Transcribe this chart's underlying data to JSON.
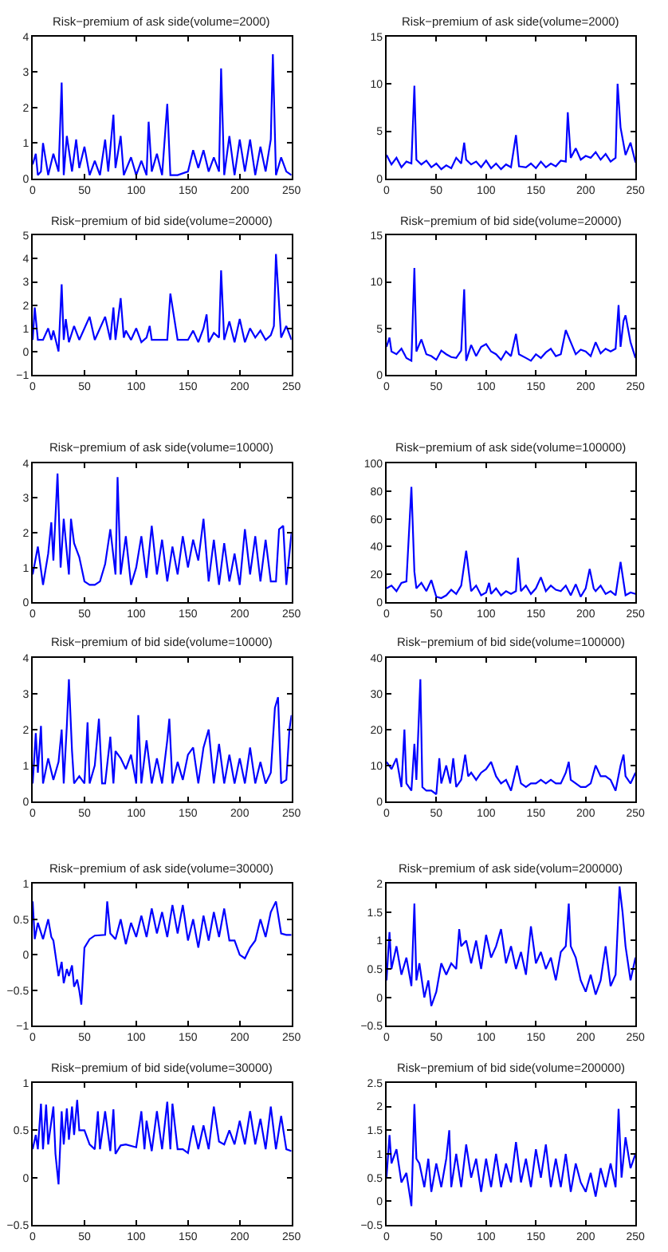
{
  "chart_data": [
    {
      "type": "line",
      "title": "Risk−premium of ask side(volume=2000)",
      "xlim": [
        0,
        250
      ],
      "xticks": [
        0,
        50,
        100,
        150,
        200,
        250
      ],
      "ylim": [
        0,
        4
      ],
      "yticks": [
        0,
        1,
        2,
        3,
        4
      ],
      "x": [
        0,
        3,
        5,
        8,
        10,
        15,
        20,
        25,
        28,
        30,
        33,
        38,
        42,
        45,
        50,
        55,
        60,
        65,
        70,
        73,
        78,
        80,
        85,
        88,
        95,
        100,
        105,
        110,
        112,
        115,
        120,
        125,
        130,
        133,
        140,
        150,
        155,
        160,
        165,
        170,
        175,
        180,
        182,
        185,
        190,
        195,
        200,
        205,
        210,
        215,
        220,
        225,
        230,
        232,
        235,
        240,
        245,
        250
      ],
      "series": [
        {
          "color": "#0000ff",
          "values": [
            0.4,
            0.7,
            0.1,
            0.2,
            1.0,
            0.1,
            0.7,
            0.2,
            2.7,
            0.1,
            1.2,
            0.2,
            1.1,
            0.3,
            0.9,
            0.1,
            0.5,
            0.1,
            1.1,
            0.2,
            1.8,
            0.3,
            1.2,
            0.1,
            0.6,
            0.1,
            0.5,
            0.1,
            1.6,
            0.2,
            0.7,
            0.1,
            2.1,
            0.1,
            0.1,
            0.2,
            0.8,
            0.3,
            0.8,
            0.2,
            0.6,
            0.2,
            3.1,
            0.1,
            1.2,
            0.1,
            1.1,
            0.2,
            1.1,
            0.1,
            0.9,
            0.2,
            1.1,
            3.5,
            0.1,
            0.6,
            0.2,
            0.1
          ]
        }
      ]
    },
    {
      "type": "line",
      "title": "Risk−premium of ask side(volume=2000)",
      "xlim": [
        0,
        250
      ],
      "xticks": [
        0,
        50,
        100,
        150,
        200,
        250
      ],
      "ylim": [
        0,
        15
      ],
      "yticks": [
        0,
        5,
        10,
        15
      ],
      "x": [
        0,
        5,
        10,
        15,
        20,
        25,
        28,
        30,
        35,
        40,
        45,
        50,
        55,
        60,
        65,
        70,
        75,
        78,
        80,
        85,
        90,
        95,
        100,
        105,
        110,
        115,
        120,
        125,
        130,
        133,
        140,
        145,
        150,
        155,
        160,
        165,
        170,
        175,
        180,
        182,
        185,
        190,
        195,
        200,
        205,
        210,
        215,
        220,
        225,
        230,
        232,
        235,
        240,
        245,
        250
      ],
      "series": [
        {
          "color": "#0000ff",
          "values": [
            2.5,
            1.5,
            2.2,
            1.2,
            1.8,
            1.6,
            9.8,
            2.0,
            1.5,
            1.9,
            1.2,
            1.6,
            1.0,
            1.4,
            1.1,
            2.2,
            1.6,
            3.8,
            2.0,
            1.5,
            1.8,
            1.2,
            1.9,
            1.1,
            1.6,
            1.0,
            1.5,
            1.2,
            4.6,
            1.3,
            1.2,
            1.6,
            1.1,
            1.8,
            1.2,
            1.6,
            1.3,
            1.9,
            1.8,
            7.0,
            2.2,
            3.2,
            2.0,
            2.4,
            2.2,
            2.8,
            2.0,
            2.6,
            1.8,
            2.2,
            10.0,
            5.4,
            2.5,
            3.8,
            1.7
          ]
        }
      ]
    },
    {
      "type": "line",
      "title": "Risk−premium of bid side(volume=20000)",
      "xlim": [
        0,
        250
      ],
      "xticks": [
        0,
        50,
        100,
        150,
        200,
        250
      ],
      "ylim": [
        -1,
        5
      ],
      "yticks": [
        -1,
        0,
        1,
        2,
        3,
        4,
        5
      ],
      "x": [
        0,
        2,
        5,
        10,
        15,
        18,
        20,
        25,
        28,
        30,
        32,
        35,
        40,
        45,
        50,
        55,
        60,
        65,
        70,
        75,
        78,
        80,
        85,
        88,
        90,
        95,
        100,
        105,
        110,
        113,
        115,
        120,
        125,
        130,
        133,
        140,
        150,
        155,
        160,
        165,
        168,
        170,
        175,
        180,
        182,
        185,
        190,
        195,
        200,
        205,
        210,
        215,
        220,
        225,
        230,
        233,
        235,
        240,
        245,
        250
      ],
      "series": [
        {
          "color": "#0000ff",
          "values": [
            0.5,
            1.9,
            0.5,
            0.5,
            1.0,
            0.5,
            0.9,
            0.0,
            2.9,
            0.5,
            1.4,
            0.4,
            1.1,
            0.5,
            1.0,
            1.5,
            0.5,
            1.0,
            1.5,
            0.5,
            1.9,
            0.5,
            2.3,
            0.6,
            0.9,
            0.5,
            1.0,
            0.4,
            0.6,
            1.1,
            0.5,
            0.5,
            0.5,
            0.5,
            2.5,
            0.5,
            0.5,
            0.9,
            0.4,
            1.0,
            1.6,
            0.4,
            0.8,
            0.6,
            3.5,
            0.5,
            1.3,
            0.4,
            1.4,
            0.4,
            1.0,
            0.6,
            0.9,
            0.5,
            0.7,
            1.1,
            4.2,
            0.6,
            1.1,
            0.5
          ]
        }
      ]
    },
    {
      "type": "line",
      "title": "Risk−premium of bid side(volume=20000)",
      "xlim": [
        0,
        250
      ],
      "xticks": [
        0,
        50,
        100,
        150,
        200,
        250
      ],
      "ylim": [
        0,
        15
      ],
      "yticks": [
        0,
        5,
        10,
        15
      ],
      "x": [
        0,
        3,
        5,
        10,
        15,
        20,
        25,
        28,
        30,
        35,
        40,
        45,
        50,
        55,
        60,
        65,
        70,
        75,
        78,
        80,
        85,
        90,
        95,
        100,
        105,
        110,
        115,
        120,
        125,
        130,
        133,
        140,
        145,
        150,
        155,
        160,
        165,
        170,
        175,
        180,
        185,
        190,
        195,
        200,
        205,
        210,
        215,
        220,
        225,
        230,
        233,
        235,
        238,
        240,
        245,
        250
      ],
      "series": [
        {
          "color": "#0000ff",
          "values": [
            3.0,
            4.0,
            2.5,
            2.2,
            2.8,
            1.8,
            1.5,
            11.5,
            2.5,
            3.8,
            2.2,
            2.0,
            1.6,
            2.6,
            2.2,
            1.9,
            1.8,
            2.6,
            9.2,
            1.5,
            3.2,
            2.0,
            3.0,
            3.3,
            2.5,
            2.2,
            1.6,
            2.5,
            2.0,
            4.4,
            2.2,
            1.8,
            1.5,
            2.2,
            1.8,
            2.4,
            2.8,
            2.0,
            2.2,
            4.8,
            3.5,
            2.2,
            2.7,
            2.5,
            2.0,
            3.5,
            2.3,
            2.8,
            2.5,
            2.8,
            7.5,
            3.0,
            5.8,
            6.4,
            3.5,
            1.8
          ]
        }
      ]
    },
    {
      "type": "line",
      "title": "Risk−premium of ask side(volume=10000)",
      "xlim": [
        0,
        250
      ],
      "xticks": [
        0,
        50,
        100,
        150,
        200,
        250
      ],
      "ylim": [
        0,
        4
      ],
      "yticks": [
        0,
        1,
        2,
        3,
        4
      ],
      "x": [
        0,
        5,
        10,
        15,
        18,
        20,
        24,
        27,
        30,
        35,
        37,
        40,
        45,
        50,
        55,
        60,
        65,
        70,
        75,
        80,
        82,
        85,
        90,
        95,
        100,
        105,
        110,
        115,
        120,
        125,
        130,
        135,
        140,
        145,
        150,
        155,
        160,
        165,
        170,
        175,
        180,
        185,
        190,
        195,
        200,
        205,
        210,
        215,
        220,
        225,
        230,
        235,
        238,
        242,
        245,
        250
      ],
      "series": [
        {
          "color": "#0000ff",
          "values": [
            0.8,
            1.6,
            0.5,
            1.4,
            2.3,
            1.2,
            3.7,
            1.0,
            2.4,
            0.8,
            2.4,
            1.7,
            1.3,
            0.6,
            0.5,
            0.5,
            0.6,
            1.1,
            2.1,
            0.8,
            3.6,
            0.8,
            1.9,
            0.5,
            1.0,
            1.9,
            0.7,
            2.2,
            0.8,
            1.8,
            0.6,
            1.6,
            0.8,
            1.9,
            1.0,
            1.8,
            1.2,
            2.4,
            0.6,
            1.8,
            0.5,
            1.7,
            0.6,
            1.4,
            0.5,
            2.1,
            0.8,
            1.9,
            0.6,
            1.8,
            0.6,
            0.6,
            2.1,
            2.2,
            0.5,
            2.0
          ]
        }
      ]
    },
    {
      "type": "line",
      "title": "Risk−premium of ask side(volume=100000)",
      "xlim": [
        0,
        250
      ],
      "xticks": [
        0,
        50,
        100,
        150,
        200,
        250
      ],
      "ylim": [
        0,
        100
      ],
      "yticks": [
        0,
        20,
        40,
        60,
        80,
        100
      ],
      "x": [
        0,
        5,
        10,
        15,
        20,
        25,
        28,
        30,
        35,
        40,
        45,
        50,
        55,
        60,
        65,
        70,
        75,
        80,
        85,
        90,
        95,
        100,
        103,
        105,
        110,
        115,
        120,
        125,
        130,
        132,
        135,
        140,
        145,
        150,
        155,
        160,
        165,
        170,
        175,
        180,
        185,
        190,
        195,
        200,
        204,
        208,
        210,
        215,
        220,
        225,
        230,
        235,
        240,
        245,
        250
      ],
      "series": [
        {
          "color": "#0000ff",
          "values": [
            10,
            12,
            8,
            14,
            15,
            83,
            22,
            10,
            14,
            8,
            16,
            4,
            3,
            5,
            9,
            6,
            12,
            37,
            8,
            12,
            5,
            7,
            14,
            6,
            10,
            5,
            8,
            6,
            8,
            32,
            8,
            12,
            6,
            10,
            18,
            8,
            12,
            9,
            8,
            12,
            5,
            13,
            4,
            10,
            24,
            10,
            8,
            12,
            6,
            8,
            5,
            29,
            5,
            7,
            6
          ]
        }
      ]
    },
    {
      "type": "line",
      "title": "Risk−premium of bid side(volume=10000)",
      "xlim": [
        0,
        250
      ],
      "xticks": [
        0,
        50,
        100,
        150,
        200,
        250
      ],
      "ylim": [
        0,
        4
      ],
      "yticks": [
        0,
        1,
        2,
        3,
        4
      ],
      "x": [
        0,
        3,
        5,
        8,
        10,
        15,
        20,
        25,
        28,
        30,
        33,
        35,
        38,
        40,
        45,
        50,
        53,
        55,
        60,
        64,
        67,
        70,
        75,
        78,
        80,
        85,
        90,
        95,
        100,
        102,
        105,
        110,
        115,
        120,
        125,
        130,
        132,
        135,
        140,
        145,
        150,
        155,
        160,
        165,
        170,
        175,
        180,
        185,
        190,
        195,
        200,
        205,
        210,
        215,
        220,
        225,
        230,
        234,
        237,
        240,
        245,
        248,
        250
      ],
      "series": [
        {
          "color": "#0000ff",
          "values": [
            0.5,
            1.9,
            0.8,
            2.1,
            0.5,
            1.2,
            0.6,
            1.1,
            2.0,
            0.5,
            2.1,
            3.4,
            1.4,
            0.5,
            0.7,
            0.5,
            2.2,
            0.5,
            1.0,
            2.3,
            0.5,
            0.5,
            1.8,
            0.5,
            1.4,
            1.2,
            0.9,
            1.3,
            0.5,
            2.4,
            0.5,
            1.7,
            0.5,
            1.2,
            0.5,
            1.7,
            2.3,
            0.5,
            1.1,
            0.6,
            1.3,
            1.5,
            0.5,
            1.5,
            2.0,
            0.5,
            1.6,
            0.5,
            1.3,
            0.5,
            1.2,
            0.5,
            1.5,
            0.5,
            1.1,
            0.5,
            0.8,
            2.6,
            2.9,
            0.5,
            0.6,
            2.0,
            2.4
          ]
        }
      ]
    },
    {
      "type": "line",
      "title": "Risk−premium of bid side(volume=100000)",
      "xlim": [
        0,
        250
      ],
      "xticks": [
        0,
        50,
        100,
        150,
        200,
        250
      ],
      "ylim": [
        0,
        40
      ],
      "yticks": [
        0,
        10,
        20,
        30,
        40
      ],
      "x": [
        0,
        5,
        10,
        15,
        18,
        20,
        25,
        28,
        30,
        34,
        36,
        40,
        45,
        50,
        53,
        55,
        60,
        64,
        67,
        70,
        75,
        79,
        82,
        85,
        90,
        95,
        100,
        105,
        110,
        115,
        120,
        125,
        131,
        135,
        140,
        145,
        150,
        155,
        160,
        165,
        170,
        175,
        180,
        183,
        185,
        190,
        195,
        200,
        205,
        210,
        215,
        220,
        225,
        230,
        235,
        238,
        240,
        245,
        250
      ],
      "series": [
        {
          "color": "#0000ff",
          "values": [
            11,
            9,
            12,
            4,
            20,
            5,
            3,
            16,
            6,
            34,
            4,
            3,
            3,
            2,
            12,
            5,
            10,
            5,
            12,
            4,
            6,
            13,
            7,
            8,
            6,
            8,
            9,
            11,
            7,
            5,
            6,
            3,
            10,
            5,
            4,
            5,
            5,
            6,
            5,
            6,
            5,
            5,
            8,
            11,
            6,
            5,
            4,
            4,
            5,
            10,
            7,
            7,
            6,
            3,
            10,
            13,
            7,
            5,
            8
          ]
        }
      ]
    },
    {
      "type": "line",
      "title": "Risk−premium of ask side(volume=30000)",
      "xlim": [
        0,
        250
      ],
      "xticks": [
        0,
        50,
        100,
        150,
        200,
        250
      ],
      "ylim": [
        -1,
        1
      ],
      "yticks": [
        -1,
        -0.5,
        0,
        0.5,
        1
      ],
      "x": [
        0,
        2,
        5,
        10,
        15,
        18,
        20,
        25,
        28,
        30,
        33,
        35,
        38,
        40,
        43,
        45,
        47,
        50,
        55,
        60,
        70,
        72,
        75,
        80,
        85,
        90,
        95,
        100,
        105,
        110,
        115,
        120,
        125,
        130,
        135,
        140,
        145,
        150,
        155,
        160,
        165,
        170,
        175,
        180,
        185,
        190,
        195,
        200,
        205,
        210,
        215,
        220,
        225,
        230,
        235,
        240,
        245,
        250
      ],
      "series": [
        {
          "color": "#0000ff",
          "values": [
            0.75,
            0.22,
            0.45,
            0.22,
            0.5,
            0.25,
            0.2,
            -0.3,
            -0.1,
            -0.4,
            -0.2,
            -0.3,
            -0.15,
            -0.45,
            -0.35,
            -0.5,
            -0.7,
            0.1,
            0.22,
            0.27,
            0.28,
            0.75,
            0.3,
            0.22,
            0.5,
            0.15,
            0.45,
            0.25,
            0.55,
            0.25,
            0.65,
            0.3,
            0.6,
            0.25,
            0.7,
            0.3,
            0.7,
            0.2,
            0.5,
            0.1,
            0.55,
            0.2,
            0.6,
            0.25,
            0.65,
            0.2,
            0.2,
            0.0,
            -0.05,
            0.1,
            0.2,
            0.5,
            0.25,
            0.6,
            0.75,
            0.3,
            0.28,
            0.28
          ]
        }
      ]
    },
    {
      "type": "line",
      "title": "Risk−premium of ask side(volum=200000)",
      "xlim": [
        0,
        250
      ],
      "xticks": [
        0,
        50,
        100,
        150,
        200,
        250
      ],
      "ylim": [
        -0.5,
        2
      ],
      "yticks": [
        -0.5,
        0,
        0.5,
        1,
        1.5,
        2
      ],
      "x": [
        0,
        3,
        5,
        10,
        15,
        20,
        25,
        28,
        30,
        33,
        38,
        42,
        45,
        50,
        55,
        60,
        65,
        70,
        73,
        75,
        80,
        85,
        90,
        95,
        100,
        105,
        110,
        115,
        120,
        125,
        130,
        135,
        140,
        145,
        150,
        155,
        160,
        165,
        170,
        175,
        180,
        183,
        185,
        190,
        195,
        200,
        205,
        210,
        215,
        220,
        225,
        230,
        234,
        237,
        240,
        245,
        250
      ],
      "series": [
        {
          "color": "#0000ff",
          "values": [
            0.3,
            1.15,
            0.5,
            0.9,
            0.4,
            0.7,
            0.2,
            1.65,
            0.3,
            0.6,
            0.0,
            0.3,
            -0.15,
            0.1,
            0.6,
            0.4,
            0.6,
            0.5,
            1.2,
            0.9,
            1.0,
            0.6,
            1.0,
            0.5,
            1.1,
            0.7,
            0.9,
            1.2,
            0.6,
            0.9,
            0.5,
            0.8,
            0.4,
            1.25,
            0.6,
            0.8,
            0.5,
            0.7,
            0.3,
            0.8,
            0.9,
            1.65,
            0.9,
            0.7,
            0.3,
            0.1,
            0.4,
            0.05,
            0.3,
            0.9,
            0.2,
            0.4,
            1.95,
            1.5,
            0.9,
            0.3,
            0.7
          ]
        }
      ]
    },
    {
      "type": "line",
      "title": "Risk−premium of bid side(volume=30000)",
      "xlim": [
        0,
        250
      ],
      "xticks": [
        0,
        50,
        100,
        150,
        200,
        250
      ],
      "ylim": [
        -0.5,
        1
      ],
      "yticks": [
        -0.5,
        0,
        0.5,
        1
      ],
      "x": [
        0,
        3,
        5,
        8,
        10,
        13,
        15,
        20,
        22,
        25,
        28,
        30,
        33,
        35,
        38,
        40,
        43,
        45,
        50,
        55,
        60,
        63,
        65,
        70,
        75,
        78,
        80,
        85,
        90,
        100,
        105,
        108,
        110,
        115,
        120,
        125,
        130,
        133,
        135,
        140,
        145,
        150,
        155,
        160,
        165,
        170,
        175,
        180,
        185,
        190,
        195,
        200,
        205,
        210,
        215,
        220,
        225,
        230,
        235,
        240,
        245,
        250
      ],
      "series": [
        {
          "color": "#0000ff",
          "values": [
            0.3,
            0.45,
            0.3,
            0.78,
            0.3,
            0.77,
            0.35,
            0.75,
            0.25,
            -0.07,
            0.7,
            0.35,
            0.73,
            0.4,
            0.75,
            0.45,
            0.82,
            0.5,
            0.5,
            0.35,
            0.3,
            0.7,
            0.3,
            0.7,
            0.28,
            0.72,
            0.25,
            0.34,
            0.35,
            0.32,
            0.7,
            0.3,
            0.6,
            0.28,
            0.7,
            0.3,
            0.8,
            0.3,
            0.78,
            0.3,
            0.3,
            0.26,
            0.55,
            0.3,
            0.55,
            0.3,
            0.75,
            0.38,
            0.35,
            0.5,
            0.35,
            0.6,
            0.35,
            0.7,
            0.35,
            0.62,
            0.3,
            0.75,
            0.3,
            0.65,
            0.3,
            0.28
          ]
        }
      ]
    },
    {
      "type": "line",
      "title": "Risk−premium of bid side(volume=200000)",
      "xlim": [
        0,
        250
      ],
      "xticks": [
        0,
        50,
        100,
        150,
        200,
        250
      ],
      "ylim": [
        -0.5,
        2.5
      ],
      "yticks": [
        -0.5,
        0,
        0.5,
        1,
        1.5,
        2,
        2.5
      ],
      "x": [
        0,
        3,
        5,
        10,
        15,
        20,
        25,
        28,
        30,
        33,
        38,
        42,
        45,
        50,
        55,
        60,
        63,
        65,
        70,
        75,
        80,
        85,
        90,
        95,
        100,
        105,
        110,
        115,
        120,
        125,
        130,
        135,
        140,
        145,
        150,
        155,
        160,
        165,
        170,
        175,
        180,
        185,
        190,
        195,
        200,
        205,
        210,
        215,
        220,
        225,
        230,
        233,
        236,
        240,
        245,
        250
      ],
      "series": [
        {
          "color": "#0000ff",
          "values": [
            0.5,
            1.4,
            0.8,
            1.1,
            0.4,
            0.6,
            -0.1,
            2.05,
            0.9,
            0.8,
            0.3,
            0.9,
            0.2,
            0.8,
            0.3,
            0.9,
            1.5,
            0.3,
            1.0,
            0.3,
            1.2,
            0.5,
            0.9,
            0.2,
            0.9,
            0.3,
            1.0,
            0.3,
            0.8,
            0.4,
            1.25,
            0.4,
            0.9,
            0.3,
            1.1,
            0.5,
            1.2,
            0.3,
            0.9,
            0.3,
            1.0,
            0.2,
            0.8,
            0.4,
            0.2,
            0.6,
            0.1,
            0.7,
            0.3,
            0.8,
            0.3,
            1.95,
            0.5,
            1.35,
            0.7,
            1.0
          ]
        }
      ]
    }
  ]
}
